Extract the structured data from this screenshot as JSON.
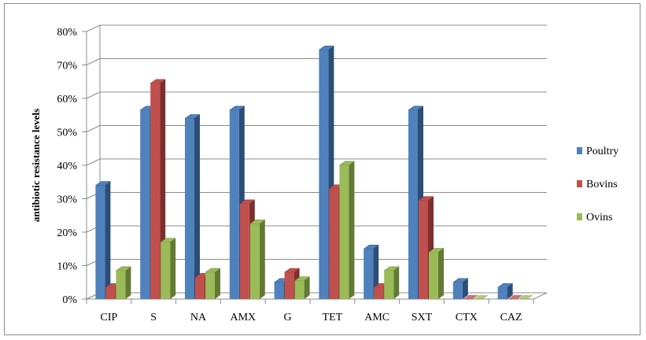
{
  "chart_data": {
    "type": "bar",
    "style": "3d-clustered-column",
    "title": "",
    "xlabel": "",
    "ylabel": "antibiotic resistance levels",
    "categories": [
      "CIP",
      "S",
      "NA",
      "AMX",
      "G",
      "TET",
      "AMC",
      "SXT",
      "CTX",
      "CAZ"
    ],
    "series": [
      {
        "name": "Poultry",
        "color": "#4f81bd",
        "shade": "#2c4d75",
        "values": [
          34,
          56.5,
          54,
          56.5,
          5,
          74.5,
          15,
          56.5,
          5,
          3.5
        ]
      },
      {
        "name": "Bovins",
        "color": "#c0504d",
        "shade": "#7e2f2d",
        "values": [
          3.5,
          64.5,
          6.5,
          28.5,
          8,
          33,
          3.5,
          29.5,
          0,
          0
        ]
      },
      {
        "name": "Ovins",
        "color": "#9bbb59",
        "shade": "#637a35",
        "values": [
          8.5,
          17,
          8,
          22.5,
          5.5,
          40,
          8.5,
          14,
          0,
          0
        ]
      }
    ],
    "yticks": [
      "0%",
      "10%",
      "20%",
      "30%",
      "40%",
      "50%",
      "60%",
      "70%",
      "80%"
    ],
    "ylim": [
      0,
      80
    ],
    "grid": true,
    "legend_position": "right"
  }
}
